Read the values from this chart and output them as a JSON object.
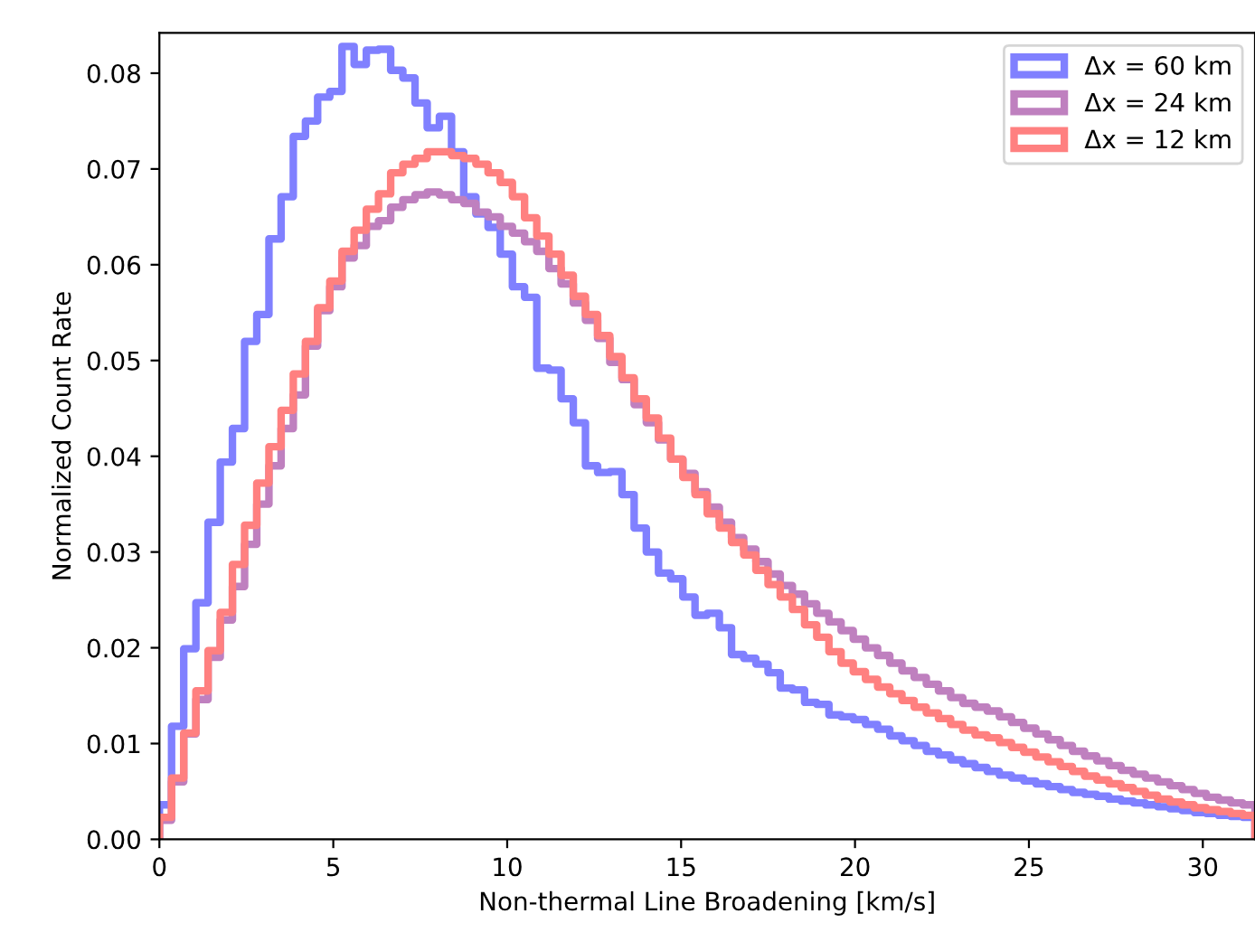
{
  "chart_data": {
    "type": "histogram",
    "xlabel": "Non-thermal Line Broadening [km/s]",
    "ylabel": "Normalized Count Rate",
    "bins": [
      0,
      0.35,
      0.7,
      1.05,
      1.4,
      1.75,
      2.1,
      2.45,
      2.8,
      3.15,
      3.5,
      3.85,
      4.2,
      4.55,
      4.9,
      5.25,
      5.6,
      5.95,
      6.3,
      6.65,
      7,
      7.35,
      7.7,
      8.05,
      8.4,
      8.75,
      9.1,
      9.45,
      9.8,
      10.15,
      10.5,
      10.85,
      11.2,
      11.55,
      11.9,
      12.25,
      12.6,
      12.95,
      13.3,
      13.65,
      14,
      14.35,
      14.7,
      15.05,
      15.4,
      15.75,
      16.1,
      16.45,
      16.8,
      17.15,
      17.5,
      17.85,
      18.2,
      18.55,
      18.9,
      19.25,
      19.6,
      19.95,
      20.3,
      20.65,
      21,
      21.35,
      21.7,
      22.05,
      22.4,
      22.75,
      23.1,
      23.45,
      23.8,
      24.15,
      24.5,
      24.85,
      25.2,
      25.55,
      25.9,
      26.25,
      26.6,
      26.95,
      27.3,
      27.65,
      28,
      28.35,
      28.7,
      29.05,
      29.4,
      29.75,
      30.1,
      30.45,
      30.8,
      31.15,
      31.5
    ],
    "series": [
      {
        "name": "Δx = 60 km",
        "color": "#8080ff",
        "values": [
          0.0036,
          0.0118,
          0.0199,
          0.0247,
          0.0331,
          0.0394,
          0.0429,
          0.052,
          0.0548,
          0.0627,
          0.0671,
          0.0734,
          0.075,
          0.0775,
          0.0781,
          0.0828,
          0.0809,
          0.0824,
          0.0825,
          0.0803,
          0.0795,
          0.0769,
          0.0743,
          0.0755,
          0.0718,
          0.0671,
          0.0653,
          0.0639,
          0.0611,
          0.0577,
          0.0566,
          0.0492,
          0.049,
          0.046,
          0.0435,
          0.039,
          0.0383,
          0.0384,
          0.036,
          0.0325,
          0.03,
          0.0278,
          0.0272,
          0.0253,
          0.0234,
          0.0236,
          0.0221,
          0.0193,
          0.0189,
          0.0183,
          0.0174,
          0.0158,
          0.0156,
          0.0143,
          0.0141,
          0.013,
          0.0128,
          0.0125,
          0.012,
          0.0115,
          0.0108,
          0.0103,
          0.0098,
          0.0092,
          0.0088,
          0.0083,
          0.0079,
          0.0075,
          0.0071,
          0.0067,
          0.0064,
          0.0061,
          0.0058,
          0.0055,
          0.0052,
          0.0049,
          0.0047,
          0.0045,
          0.0042,
          0.004,
          0.0038,
          0.0036,
          0.0034,
          0.0032,
          0.003,
          0.0028,
          0.0027,
          0.0025,
          0.0024,
          0.0023
        ]
      },
      {
        "name": "Δx = 24 km",
        "color": "#bf80bf",
        "values": [
          0.002,
          0.006,
          0.011,
          0.0146,
          0.019,
          0.0229,
          0.0264,
          0.0308,
          0.035,
          0.039,
          0.0429,
          0.0464,
          0.0515,
          0.0552,
          0.0577,
          0.0607,
          0.062,
          0.064,
          0.0646,
          0.066,
          0.0668,
          0.0673,
          0.0676,
          0.0673,
          0.0668,
          0.0664,
          0.0655,
          0.065,
          0.064,
          0.0633,
          0.0624,
          0.0614,
          0.0596,
          0.058,
          0.056,
          0.0542,
          0.0523,
          0.0498,
          0.048,
          0.0454,
          0.0435,
          0.0417,
          0.0397,
          0.0382,
          0.0363,
          0.0347,
          0.0331,
          0.0315,
          0.0303,
          0.029,
          0.0277,
          0.0265,
          0.0256,
          0.0246,
          0.0236,
          0.0227,
          0.0218,
          0.0209,
          0.02,
          0.0192,
          0.0184,
          0.0176,
          0.0169,
          0.0162,
          0.0155,
          0.0148,
          0.0142,
          0.0138,
          0.0134,
          0.0128,
          0.0122,
          0.0116,
          0.011,
          0.0104,
          0.0098,
          0.0092,
          0.0087,
          0.0082,
          0.0077,
          0.0072,
          0.0068,
          0.0064,
          0.006,
          0.0056,
          0.0052,
          0.0048,
          0.0044,
          0.0041,
          0.0038,
          0.0036
        ]
      },
      {
        "name": "Δx = 12 km",
        "color": "#ff8080",
        "values": [
          0.0023,
          0.0064,
          0.0111,
          0.0155,
          0.0197,
          0.0237,
          0.0287,
          0.0328,
          0.0372,
          0.041,
          0.0448,
          0.0486,
          0.052,
          0.0555,
          0.0583,
          0.0614,
          0.0636,
          0.0658,
          0.0674,
          0.0696,
          0.0705,
          0.0711,
          0.0718,
          0.0718,
          0.0714,
          0.0711,
          0.0705,
          0.0696,
          0.0686,
          0.0671,
          0.0649,
          0.063,
          0.0611,
          0.0589,
          0.0567,
          0.0548,
          0.0526,
          0.0504,
          0.0482,
          0.046,
          0.044,
          0.0419,
          0.0397,
          0.0378,
          0.036,
          0.034,
          0.0325,
          0.031,
          0.0297,
          0.0281,
          0.0266,
          0.0253,
          0.024,
          0.0224,
          0.0211,
          0.0196,
          0.0184,
          0.0175,
          0.0167,
          0.0159,
          0.0152,
          0.0145,
          0.0138,
          0.0132,
          0.0126,
          0.012,
          0.0114,
          0.0109,
          0.0106,
          0.0101,
          0.0096,
          0.0091,
          0.0086,
          0.0081,
          0.0076,
          0.0071,
          0.0066,
          0.0062,
          0.0058,
          0.0054,
          0.005,
          0.0046,
          0.0042,
          0.0039,
          0.0036,
          0.0033,
          0.0031,
          0.0029,
          0.0027,
          0.0025
        ]
      }
    ],
    "xlim": [
      0,
      31.5
    ],
    "ylim": [
      0,
      0.0842
    ],
    "xticks": [
      0,
      5,
      10,
      15,
      20,
      25,
      30
    ],
    "yticks": [
      {
        "value": 0,
        "label": "0.00"
      },
      {
        "value": 0.01,
        "label": "0.01"
      },
      {
        "value": 0.02,
        "label": "0.02"
      },
      {
        "value": 0.03,
        "label": "0.03"
      },
      {
        "value": 0.04,
        "label": "0.04"
      },
      {
        "value": 0.05,
        "label": "0.05"
      },
      {
        "value": 0.06,
        "label": "0.06"
      },
      {
        "value": 0.07,
        "label": "0.07"
      },
      {
        "value": 0.08,
        "label": "0.08"
      }
    ],
    "legend": "top right",
    "grid": false
  }
}
